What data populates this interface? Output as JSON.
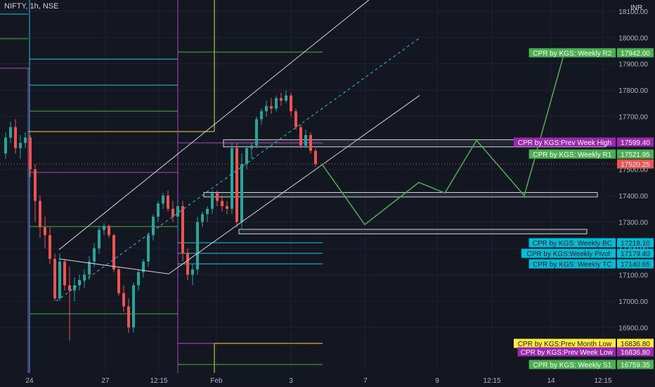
{
  "header": {
    "symbol": "NIFTY",
    "interval": "1h",
    "exchange": "NSE",
    "currency": "INR"
  },
  "colors": {
    "background": "#131722",
    "up_candle": "#26a69a",
    "down_candle": "#ef5350",
    "axis_text": "#b2b5be",
    "channel_line": "#ffffff",
    "projection_line": "#4caf50"
  },
  "chart_data": {
    "type": "candlestick",
    "y_axis": {
      "position": "right",
      "ticks": [
        16900,
        17000,
        17100,
        17200,
        17300,
        17400,
        17500,
        17600,
        17700,
        17800,
        17900,
        18000,
        18100
      ],
      "tick_labels": [
        "16900.00",
        "17000.00",
        "17100.00",
        "17200.00",
        "17300.00",
        "17400.00",
        "17500.00",
        "17600.00",
        "17700.00",
        "17800.00",
        "17900.00",
        "18000.00",
        "18100.00"
      ],
      "range": [
        16780,
        18130
      ]
    },
    "x_axis": {
      "tick_labels": [
        "24",
        "27",
        "12:15",
        "Feb",
        "3",
        "7",
        "9",
        "12:15",
        "14",
        "12:15"
      ]
    },
    "candles": [
      [
        17560,
        17640,
        17540,
        17620
      ],
      [
        17620,
        17680,
        17600,
        17660
      ],
      [
        17660,
        17690,
        17560,
        17580
      ],
      [
        17580,
        17630,
        17540,
        17600
      ],
      [
        17600,
        17640,
        17580,
        17620
      ],
      [
        17620,
        17630,
        17470,
        17500
      ],
      [
        17500,
        17520,
        17300,
        17380
      ],
      [
        17380,
        17400,
        17240,
        17280
      ],
      [
        17280,
        17320,
        17200,
        17250
      ],
      [
        17250,
        17280,
        17140,
        17160
      ],
      [
        17160,
        17180,
        17000,
        17010
      ],
      [
        17010,
        17180,
        17000,
        17150
      ],
      [
        17150,
        17160,
        17040,
        17060
      ],
      [
        17060,
        17130,
        16850,
        17040
      ],
      [
        17040,
        17090,
        17000,
        17060
      ],
      [
        17060,
        17100,
        17040,
        17080
      ],
      [
        17080,
        17120,
        17050,
        17100
      ],
      [
        17100,
        17170,
        17080,
        17150
      ],
      [
        17150,
        17220,
        17130,
        17200
      ],
      [
        17200,
        17280,
        17180,
        17270
      ],
      [
        17270,
        17295,
        17250,
        17285
      ],
      [
        17285,
        17290,
        17240,
        17250
      ],
      [
        17250,
        17255,
        17110,
        17120
      ],
      [
        17120,
        17130,
        17020,
        17030
      ],
      [
        17030,
        17060,
        16960,
        16980
      ],
      [
        16980,
        17010,
        16880,
        16900
      ],
      [
        16900,
        17070,
        16880,
        17060
      ],
      [
        17060,
        17120,
        17040,
        17110
      ],
      [
        17110,
        17160,
        17090,
        17150
      ],
      [
        17150,
        17260,
        17130,
        17250
      ],
      [
        17250,
        17330,
        17230,
        17320
      ],
      [
        17320,
        17380,
        17300,
        17370
      ],
      [
        17370,
        17410,
        17350,
        17400
      ],
      [
        17400,
        17420,
        17340,
        17350
      ],
      [
        17350,
        17380,
        17300,
        17320
      ],
      [
        17320,
        17380,
        17260,
        17360
      ],
      [
        17360,
        17380,
        17150,
        17180
      ],
      [
        17180,
        17200,
        17080,
        17100
      ],
      [
        17100,
        17140,
        17060,
        17120
      ],
      [
        17120,
        17320,
        17100,
        17300
      ],
      [
        17300,
        17340,
        17280,
        17330
      ],
      [
        17330,
        17360,
        17300,
        17350
      ],
      [
        17350,
        17420,
        17330,
        17410
      ],
      [
        17410,
        17420,
        17360,
        17380
      ],
      [
        17380,
        17400,
        17340,
        17360
      ],
      [
        17360,
        17380,
        17330,
        17350
      ],
      [
        17350,
        17600,
        17330,
        17580
      ],
      [
        17580,
        17600,
        17280,
        17300
      ],
      [
        17300,
        17560,
        17270,
        17520
      ],
      [
        17520,
        17590,
        17500,
        17580
      ],
      [
        17580,
        17600,
        17540,
        17590
      ],
      [
        17590,
        17700,
        17580,
        17690
      ],
      [
        17690,
        17730,
        17670,
        17720
      ],
      [
        17720,
        17760,
        17700,
        17740
      ],
      [
        17740,
        17770,
        17710,
        17730
      ],
      [
        17730,
        17780,
        17720,
        17770
      ],
      [
        17770,
        17790,
        17740,
        17760
      ],
      [
        17760,
        17800,
        17750,
        17780
      ],
      [
        17780,
        17790,
        17700,
        17720
      ],
      [
        17720,
        17730,
        17650,
        17660
      ],
      [
        17660,
        17670,
        17580,
        17590
      ],
      [
        17590,
        17650,
        17580,
        17630
      ],
      [
        17630,
        17640,
        17560,
        17570
      ],
      [
        17570,
        17580,
        17510,
        17520
      ]
    ],
    "projection": [
      17520,
      17370,
      17290,
      17380,
      17450,
      17410,
      17610,
      17400,
      17942
    ],
    "channel": {
      "upper": [
        [
          17440,
          17195
        ],
        [
          17980,
          18250
        ]
      ],
      "middle": [
        [
          17390,
          17000
        ],
        [
          18000,
          18000
        ]
      ],
      "lower": [
        [
          17355,
          17103
        ],
        [
          17820,
          17780
        ]
      ]
    },
    "current_price": 17520.25,
    "levels": [
      {
        "label": "CPR by KGS: Weekly R2",
        "value_text": "17942.00",
        "value": 17942.0,
        "color": "#4caf50",
        "text_color": "#ffffff"
      },
      {
        "label": "CPR by KGS:Prev Week High",
        "value_text": "17599.40",
        "value": 17599.4,
        "color": "#9c27b0",
        "text_color": "#ffffff"
      },
      {
        "label": "CPR by KGS: Weekly R1",
        "value_text": "17521.95",
        "value": 17521.95,
        "color": "#4caf50",
        "text_color": "#ffffff"
      },
      {
        "label": "",
        "value_text": "17520.25",
        "value": 17520.25,
        "color": "#ef5350",
        "text_color": "#ffffff"
      },
      {
        "label": "CPR by KGS: Weekly BC",
        "value_text": "17218.10",
        "value": 17218.1,
        "color": "#00bcd4",
        "text_color": "#131722"
      },
      {
        "label": "CPR by KGS:Weekly Pivot",
        "value_text": "17179.40",
        "value": 17179.4,
        "color": "#00bcd4",
        "text_color": "#131722"
      },
      {
        "label": "CPR by KGS: Weekly TC",
        "value_text": "17140.65",
        "value": 17140.65,
        "color": "#00bcd4",
        "text_color": "#131722"
      },
      {
        "label": "CPR by KGS:Prev Month Low",
        "value_text": "16836.80",
        "value": 16836.8,
        "color": "#ffeb3b",
        "text_color": "#131722"
      },
      {
        "label": "CPR by KGS:Prev Week Low",
        "value_text": "16836.80",
        "value": 16836.8,
        "color": "#9c27b0",
        "text_color": "#ffffff"
      },
      {
        "label": "CPR by KGS: Weekly S1",
        "value_text": "16759.35",
        "value": 16759.35,
        "color": "#4caf50",
        "text_color": "#ffffff"
      }
    ],
    "zones": [
      {
        "low": 17585,
        "high": 17612
      },
      {
        "low": 17395,
        "high": 17412
      },
      {
        "low": 17255,
        "high": 17272
      }
    ]
  }
}
